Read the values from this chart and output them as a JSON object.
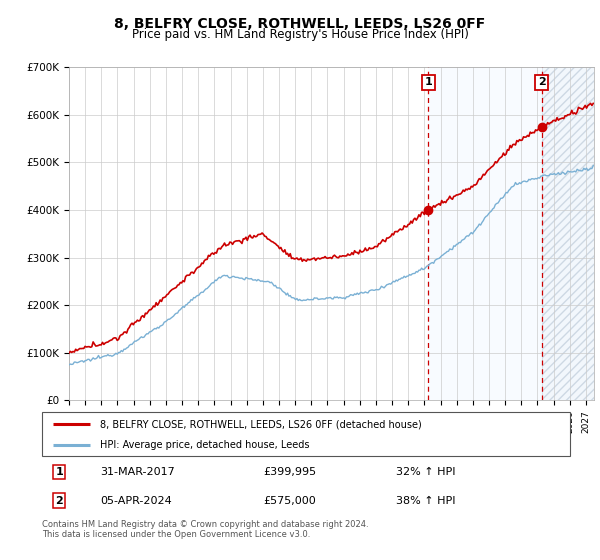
{
  "title": "8, BELFRY CLOSE, ROTHWELL, LEEDS, LS26 0FF",
  "subtitle": "Price paid vs. HM Land Registry's House Price Index (HPI)",
  "ylim": [
    0,
    700000
  ],
  "yticks": [
    0,
    100000,
    200000,
    300000,
    400000,
    500000,
    600000,
    700000
  ],
  "ytick_labels": [
    "£0",
    "£100K",
    "£200K",
    "£300K",
    "£400K",
    "£500K",
    "£600K",
    "£700K"
  ],
  "xlim_start": 1995.0,
  "xlim_end": 2027.5,
  "sale1_x": 2017.25,
  "sale1_y": 399995,
  "sale2_x": 2024.27,
  "sale2_y": 575000,
  "sale1_date": "31-MAR-2017",
  "sale1_price": "£399,995",
  "sale1_hpi": "32% ↑ HPI",
  "sale2_date": "05-APR-2024",
  "sale2_price": "£575,000",
  "sale2_hpi": "38% ↑ HPI",
  "line_color_red": "#cc0000",
  "line_color_blue": "#7ab0d4",
  "shade_color_blue": "#ddeeff",
  "legend_label_red": "8, BELFRY CLOSE, ROTHWELL, LEEDS, LS26 0FF (detached house)",
  "legend_label_blue": "HPI: Average price, detached house, Leeds",
  "footer": "Contains HM Land Registry data © Crown copyright and database right 2024.\nThis data is licensed under the Open Government Licence v3.0.",
  "background_color": "#ffffff",
  "grid_color": "#cccccc"
}
